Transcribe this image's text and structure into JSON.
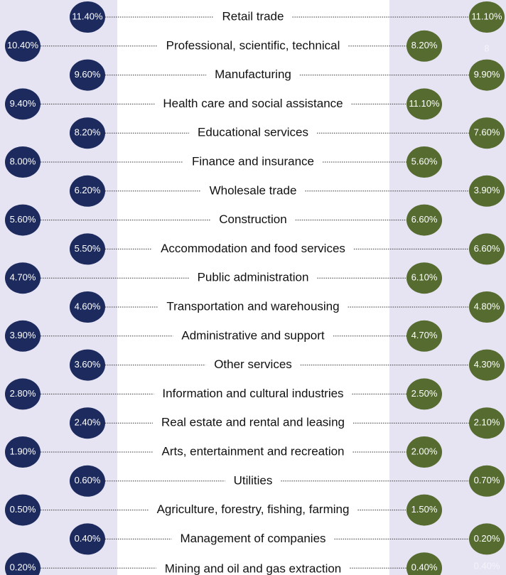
{
  "chart_data": {
    "type": "dot",
    "categories": [
      "Retail trade",
      "Professional, scientific, technical",
      "Manufacturing",
      "Health care and social assistance",
      "Educational services",
      "Finance and insurance",
      "Wholesale trade",
      "Construction",
      "Accommodation and food services",
      "Public administration",
      "Transportation and warehousing",
      "Administrative and support",
      "Other services",
      "Information and cultural industries",
      "Real estate and rental and leasing",
      "Arts, entertainment and recreation",
      "Utilities",
      "Agriculture, forestry, fishing, farming",
      "Management of companies",
      "Mining and oil and gas extraction"
    ],
    "series": [
      {
        "color": "#1c2a5e",
        "values": [
          11.4,
          10.4,
          9.6,
          9.4,
          8.2,
          8.0,
          6.2,
          5.6,
          5.5,
          4.7,
          4.6,
          3.9,
          3.6,
          2.8,
          2.4,
          1.9,
          0.6,
          0.5,
          0.4,
          0.2
        ],
        "value_labels": [
          "11.40%",
          "10.40%",
          "9.60%",
          "9.40%",
          "8.20%",
          "8.00%",
          "6.20%",
          "5.60%",
          "5.50%",
          "4.70%",
          "4.60%",
          "3.90%",
          "3.60%",
          "2.80%",
          "2.40%",
          "1.90%",
          "0.60%",
          "0.50%",
          "0.40%",
          "0.20%"
        ]
      },
      {
        "color": "#556b2f",
        "values": [
          11.1,
          8.2,
          9.9,
          11.1,
          7.6,
          5.6,
          3.9,
          6.6,
          6.6,
          6.1,
          4.8,
          4.7,
          4.3,
          2.5,
          2.1,
          2.0,
          0.7,
          1.5,
          0.2,
          0.4
        ],
        "value_labels": [
          "11.10%",
          "8.20%",
          "9.90%",
          "11.10%",
          "7.60%",
          "5.60%",
          "3.90%",
          "6.60%",
          "6.60%",
          "6.10%",
          "4.80%",
          "4.70%",
          "4.30%",
          "2.50%",
          "2.10%",
          "2.00%",
          "0.70%",
          "1.50%",
          "0.20%",
          "0.40%"
        ]
      }
    ],
    "annotations": [
      "8",
      "0.40%"
    ]
  }
}
